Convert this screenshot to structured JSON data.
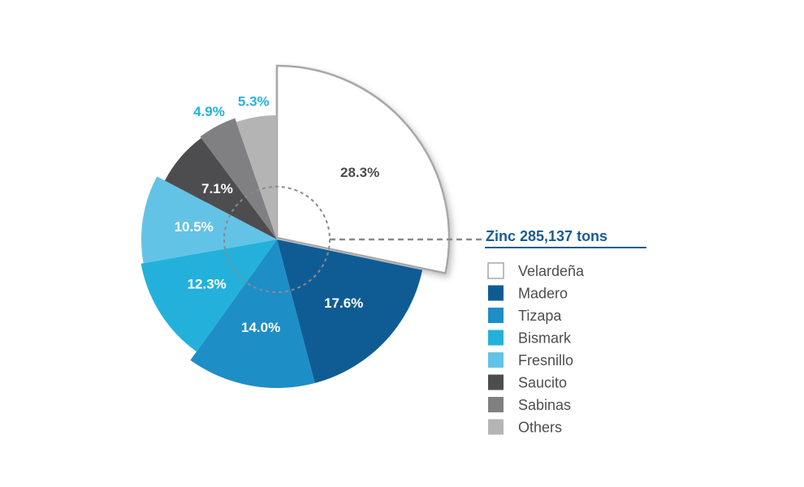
{
  "chart_data": {
    "type": "pie",
    "title": "Zinc 285,137 tons",
    "categories": [
      "Velardeña",
      "Madero",
      "Tizapa",
      "Bismark",
      "Fresnillo",
      "Saucito",
      "Sabinas",
      "Others"
    ],
    "values": [
      28.3,
      17.6,
      14.0,
      12.3,
      10.5,
      7.1,
      4.9,
      5.3
    ],
    "labels": [
      "28.3%",
      "17.6%",
      "14.0%",
      "12.3%",
      "10.5%",
      "7.1%",
      "4.9%",
      "5.3%"
    ],
    "colors": [
      "#ffffff",
      "#0f5c95",
      "#1e8ec6",
      "#23b1dc",
      "#63c3e6",
      "#4d4d4f",
      "#808082",
      "#b4b4b5"
    ],
    "exploded_slice": "Velardeña",
    "legend_position": "right"
  },
  "style": {
    "title_color": "#1a5c8f",
    "outline_color": "#a7a7a9",
    "dark_label_color": "#4d4d4f",
    "outside_label_color": "#23b1dc",
    "inside_label_color": "#ffffff"
  }
}
